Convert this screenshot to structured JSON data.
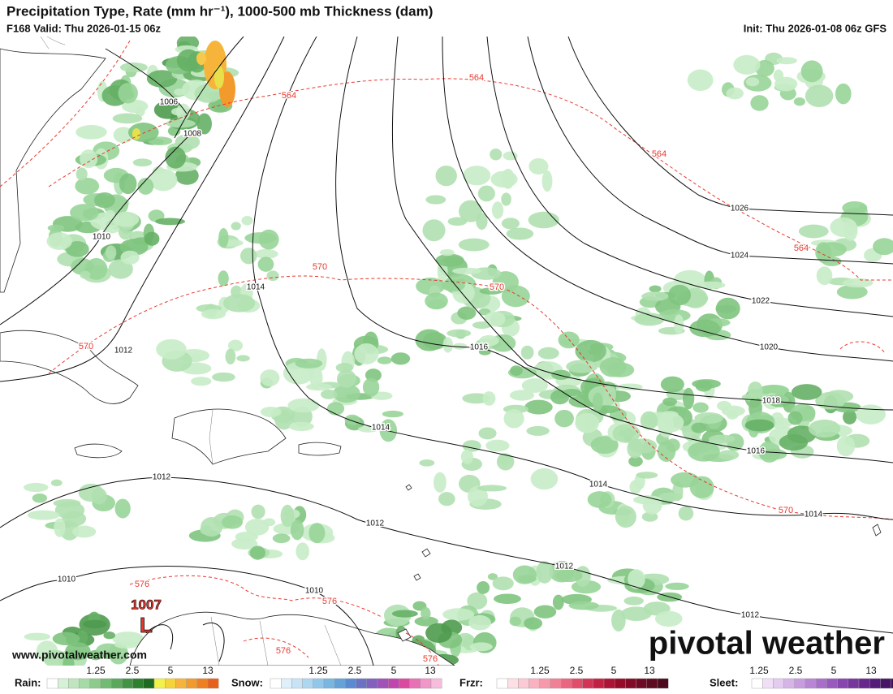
{
  "header": {
    "title": "Precipitation Type, Rate (mm hr⁻¹), 1000-500 mb Thickness (dam)",
    "valid": "F168 Valid: Thu 2026-01-15 06z",
    "init": "Init: Thu 2026-01-08 06z GFS"
  },
  "isobar_labels": [
    "1006",
    "1008",
    "1010",
    "1014",
    "1012",
    "1026",
    "1024",
    "1022",
    "1020",
    "1016",
    "1018",
    "1014",
    "1016",
    "1014",
    "1014",
    "1012",
    "1012",
    "1012",
    "1010",
    "1010",
    "1012"
  ],
  "thickness_labels": [
    "564",
    "564",
    "564",
    "564",
    "570",
    "570",
    "570",
    "570",
    "576",
    "576",
    "576",
    "576"
  ],
  "low": {
    "pressure": "1007",
    "symbol": "L"
  },
  "watermark": "pivotal weather",
  "website": "www.pivotalweather.com",
  "legend": [
    {
      "name": "Rain:",
      "ticks": [
        "1.25",
        "2.5",
        "5",
        "13"
      ]
    },
    {
      "name": "Snow:",
      "ticks": [
        "1.25",
        "2.5",
        "5",
        "13"
      ]
    },
    {
      "name": "Frzr:",
      "ticks": [
        "1.25",
        "2.5",
        "5",
        "13"
      ]
    },
    {
      "name": "Sleet:",
      "ticks": [
        "1.25",
        "2.5",
        "5",
        "13"
      ]
    }
  ]
}
